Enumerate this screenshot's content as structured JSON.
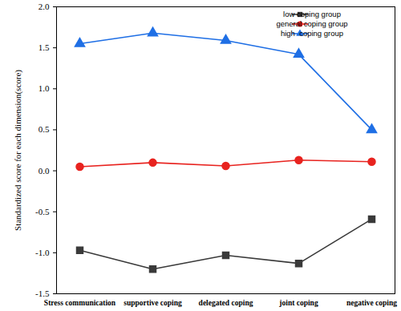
{
  "chart_data": {
    "type": "line",
    "ylabel": "Standardized score for each dimension(score)",
    "categories": [
      "Stress communication",
      "supportive coping",
      "delegated coping",
      "joint coping",
      "negative coping"
    ],
    "series": [
      {
        "name": "low coping group",
        "color": "#3a3a3a",
        "marker": "square",
        "values": [
          -0.97,
          -1.2,
          -1.03,
          -1.13,
          -0.59
        ]
      },
      {
        "name": "general coping group",
        "color": "#e8231f",
        "marker": "circle",
        "values": [
          0.05,
          0.1,
          0.06,
          0.13,
          0.11
        ]
      },
      {
        "name": "high  coping group",
        "color": "#1f6fe5",
        "marker": "triangle",
        "values": [
          1.55,
          1.68,
          1.59,
          1.42,
          0.5
        ]
      }
    ],
    "ylim": [
      -1.5,
      2.0
    ],
    "yticks": [
      -1.5,
      {
        "value": -1,
        "label": "-1.0"
      },
      -0.5,
      {
        "value": 0,
        "label": "0.0"
      },
      0.5,
      {
        "value": 1,
        "label": "1.0"
      },
      1.5,
      {
        "value": 2,
        "label": "2.0"
      }
    ],
    "grid": false,
    "legend": "top-right"
  }
}
